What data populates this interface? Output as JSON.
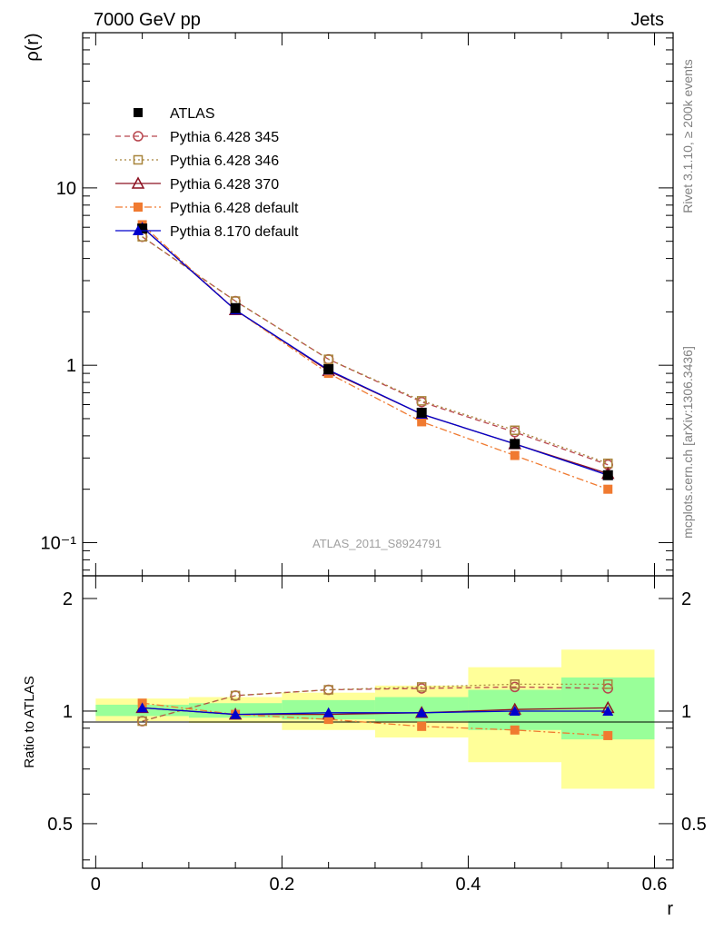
{
  "header": {
    "left": "7000 GeV pp",
    "right": "Jets"
  },
  "side": {
    "top": "Rivet 3.1.10, ≥ 200k events",
    "bottom": "mcplots.cern.ch [arXiv:1306.3436]"
  },
  "watermark": "ATLAS_2011_S8924791",
  "chart_data": [
    {
      "type": "line",
      "yscale": "log",
      "ylabel": "ρ(r)",
      "ylim": [
        0.065,
        75
      ],
      "yticks": [
        {
          "value": 10,
          "label": "10"
        },
        {
          "value": 1,
          "label": "1"
        },
        {
          "value": 0.1,
          "label": "10⁻¹"
        }
      ],
      "legend_position": "top-left",
      "x": [
        0.05,
        0.15,
        0.25,
        0.35,
        0.45,
        0.55
      ],
      "series": [
        {
          "name": "ATLAS",
          "values": [
            5.9,
            2.1,
            0.95,
            0.54,
            0.36,
            0.24
          ],
          "color": "#000000",
          "marker": "square-filled",
          "dash": "none",
          "line": false
        },
        {
          "name": "Pythia 6.428 345",
          "values": [
            5.3,
            2.3,
            1.08,
            0.62,
            0.42,
            0.275
          ],
          "color": "#b8464e",
          "marker": "circle-open",
          "dash": "6,4",
          "line": true
        },
        {
          "name": "Pythia 6.428 346",
          "values": [
            5.3,
            2.3,
            1.08,
            0.63,
            0.43,
            0.28
          ],
          "color": "#a8853c",
          "marker": "square-open",
          "dash": "2,3",
          "line": true
        },
        {
          "name": "Pythia 6.428 370",
          "values": [
            6.0,
            2.05,
            0.93,
            0.53,
            0.36,
            0.245
          ],
          "color": "#8c1020",
          "marker": "triangle-open",
          "dash": "none",
          "line": true
        },
        {
          "name": "Pythia 6.428 default",
          "values": [
            6.2,
            2.05,
            0.9,
            0.48,
            0.31,
            0.2
          ],
          "color": "#f07a30",
          "marker": "square-filled",
          "dash": "8,3,2,3",
          "line": true
        },
        {
          "name": "Pythia 8.170 default",
          "values": [
            6.0,
            2.05,
            0.94,
            0.53,
            0.36,
            0.24
          ],
          "color": "#0000cc",
          "marker": "triangle-filled",
          "dash": "none",
          "line": true
        }
      ]
    },
    {
      "type": "line",
      "ylabel": "Ratio to ATLAS",
      "xlabel": "r",
      "xlim": [
        -0.014,
        0.62
      ],
      "ylim": [
        0.38,
        2.3
      ],
      "xticks": [
        {
          "value": 0,
          "label": "0"
        },
        {
          "value": 0.2,
          "label": "0.2"
        },
        {
          "value": 0.4,
          "label": "0.4"
        },
        {
          "value": 0.6,
          "label": "0.6"
        }
      ],
      "yticks": [
        {
          "value": 0.5,
          "label": "0.5"
        },
        {
          "value": 1,
          "label": "1"
        },
        {
          "value": 2,
          "label": "2"
        }
      ],
      "bands": [
        {
          "x0": 0.0,
          "x1": 0.1,
          "yellow": [
            0.94,
            1.08
          ],
          "green": [
            0.97,
            1.04
          ]
        },
        {
          "x0": 0.1,
          "x1": 0.2,
          "yellow": [
            0.93,
            1.09
          ],
          "green": [
            0.96,
            1.05
          ]
        },
        {
          "x0": 0.2,
          "x1": 0.3,
          "yellow": [
            0.89,
            1.12
          ],
          "green": [
            0.95,
            1.07
          ]
        },
        {
          "x0": 0.3,
          "x1": 0.4,
          "yellow": [
            0.85,
            1.17
          ],
          "green": [
            0.94,
            1.09
          ]
        },
        {
          "x0": 0.4,
          "x1": 0.5,
          "yellow": [
            0.73,
            1.31
          ],
          "green": [
            0.89,
            1.14
          ]
        },
        {
          "x0": 0.5,
          "x1": 0.6,
          "yellow": [
            0.62,
            1.46
          ],
          "green": [
            0.84,
            1.23
          ]
        }
      ],
      "x": [
        0.05,
        0.15,
        0.25,
        0.35,
        0.45,
        0.55
      ],
      "series": [
        {
          "name": "Pythia 6.428 345",
          "values": [
            0.94,
            1.1,
            1.14,
            1.15,
            1.16,
            1.15
          ]
        },
        {
          "name": "Pythia 6.428 346",
          "values": [
            0.94,
            1.1,
            1.14,
            1.16,
            1.18,
            1.18
          ]
        },
        {
          "name": "Pythia 6.428 370",
          "values": [
            1.02,
            0.98,
            0.98,
            0.99,
            1.01,
            1.02
          ]
        },
        {
          "name": "Pythia 6.428 default",
          "values": [
            1.05,
            0.98,
            0.95,
            0.91,
            0.89,
            0.86
          ]
        },
        {
          "name": "Pythia 8.170 default",
          "values": [
            1.02,
            0.98,
            0.99,
            0.99,
            1.0,
            1.0
          ]
        }
      ]
    }
  ]
}
